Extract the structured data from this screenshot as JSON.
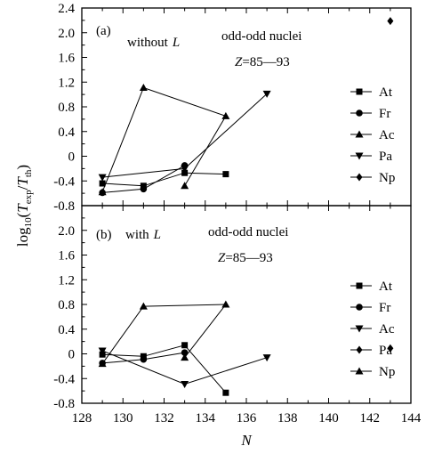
{
  "chart_data": [
    {
      "type": "line",
      "panel_label": "(a)",
      "annotation_text": "without",
      "annotation_var": "L",
      "title_line1": "odd-odd nuclei",
      "title_line2_var": "Z",
      "title_line2_rest": "=85—93",
      "ylim": [
        -0.8,
        2.4
      ],
      "yticks": [
        "2.4",
        "2.0",
        "1.6",
        "1.2",
        "0.8",
        "0.4",
        "0",
        "-0.4",
        "-0.8"
      ],
      "series": [
        {
          "name": "At",
          "marker": "square",
          "x": [
            129,
            131,
            133,
            135
          ],
          "y": [
            -0.44,
            -0.48,
            -0.27,
            -0.29
          ]
        },
        {
          "name": "Fr",
          "marker": "circle",
          "x": [
            129,
            131,
            133
          ],
          "y": [
            -0.59,
            -0.53,
            -0.15
          ]
        },
        {
          "name": "Ac",
          "marker": "triangle",
          "x": [
            129,
            131,
            135,
            133
          ],
          "y": [
            -0.58,
            1.11,
            0.65,
            -0.48
          ]
        },
        {
          "name": "Pa",
          "marker": "tridown",
          "x": [
            129,
            133,
            137
          ],
          "y": [
            -0.34,
            -0.2,
            1.01
          ]
        },
        {
          "name": "Np",
          "marker": "diamond",
          "x": [
            143
          ],
          "y": [
            2.19
          ]
        }
      ]
    },
    {
      "type": "line",
      "panel_label": "(b)",
      "annotation_text": "with",
      "annotation_var": "L",
      "title_line1": "odd-odd nuclei",
      "title_line2_var": "Z",
      "title_line2_rest": "=85—93",
      "ylim": [
        -0.8,
        2.4
      ],
      "yticks": [
        "2.0",
        "1.6",
        "1.2",
        "0.8",
        "0.4",
        "0",
        "-0.4",
        "-0.8"
      ],
      "xlim": [
        128,
        144
      ],
      "xticks": [
        "128",
        "130",
        "132",
        "134",
        "136",
        "138",
        "140",
        "142",
        "144"
      ],
      "series": [
        {
          "name": "At",
          "marker": "square",
          "x": [
            129,
            131,
            133,
            135
          ],
          "y": [
            -0.01,
            -0.04,
            0.14,
            -0.63
          ]
        },
        {
          "name": "Fr",
          "marker": "circle",
          "x": [
            129,
            131,
            133
          ],
          "y": [
            -0.15,
            -0.09,
            0.02
          ]
        },
        {
          "name": "Ac",
          "marker": "tridown",
          "x": [
            129,
            133,
            137
          ],
          "y": [
            0.05,
            -0.49,
            -0.06
          ]
        },
        {
          "name": "Pa",
          "marker": "diamond",
          "x": [
            143
          ],
          "y": [
            0.09
          ]
        },
        {
          "name": "Np",
          "marker": "triangle",
          "x": [
            129,
            131,
            135,
            133
          ],
          "y": [
            -0.16,
            0.77,
            0.8,
            -0.06
          ]
        }
      ]
    }
  ],
  "axes": {
    "ylabel_pre": "log",
    "ylabel_sub": "10",
    "ylabel_open": "(",
    "ylabel_T1": "T",
    "ylabel_sub1": "exp",
    "ylabel_slash": "/",
    "ylabel_T2": "T",
    "ylabel_sub2": "th",
    "ylabel_close": ")",
    "xlabel": "N"
  }
}
